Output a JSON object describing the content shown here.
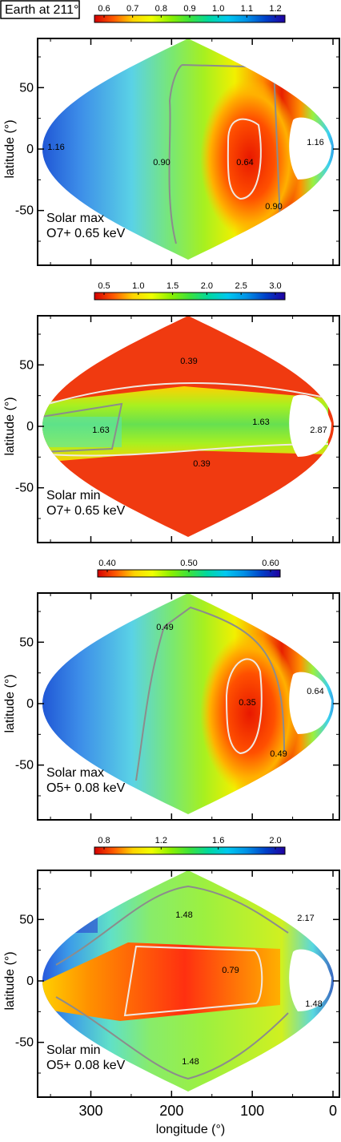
{
  "figure": {
    "earth_label": "Earth at 211°",
    "xlabel": "longitude (°)",
    "ylabel": "latitude (°)"
  },
  "colors": {
    "colormap": [
      "#d40000",
      "#ff5a00",
      "#ffd200",
      "#f0ff00",
      "#8cf000",
      "#3ce23c",
      "#00d8a0",
      "#00c8f0",
      "#0090e6",
      "#0040c8",
      "#2000a0"
    ],
    "outer_contour": "#8c8c8c",
    "inner_contour": "#f0e8e0"
  },
  "chart_data": [
    {
      "type": "heatmap",
      "projection": "sinusoidal",
      "panel_label": [
        "Solar max",
        "O7+ 0.65 keV"
      ],
      "xlim": [
        360,
        0
      ],
      "ylim": [
        -90,
        90
      ],
      "xticks": [
        300,
        200,
        100,
        0
      ],
      "yticks": [
        50,
        0,
        -50
      ],
      "colorbar": {
        "ticks": [
          "0.6",
          "0.7",
          "0.8",
          "0.9",
          "1.0",
          "1.1",
          "1.2"
        ]
      },
      "contour_labels": [
        "1.16",
        "0.90",
        "0.64",
        "1.16",
        "0.90"
      ],
      "pattern": "max",
      "grid": false
    },
    {
      "type": "heatmap",
      "projection": "sinusoidal",
      "panel_label": [
        "Solar min",
        "O7+ 0.65 keV"
      ],
      "xlim": [
        360,
        0
      ],
      "ylim": [
        -90,
        90
      ],
      "xticks": [
        300,
        200,
        100,
        0
      ],
      "yticks": [
        50,
        0,
        -50
      ],
      "colorbar": {
        "ticks": [
          "0.5",
          "1.0",
          "1.5",
          "2.0",
          "2.5",
          "3.0"
        ]
      },
      "contour_labels": [
        "0.39",
        "1.63",
        "1.63",
        "2.87",
        "0.39"
      ],
      "pattern": "min",
      "grid": false
    },
    {
      "type": "heatmap",
      "projection": "sinusoidal",
      "panel_label": [
        "Solar max",
        "O5+ 0.08 keV"
      ],
      "xlim": [
        360,
        0
      ],
      "ylim": [
        -90,
        90
      ],
      "xticks": [
        300,
        200,
        100,
        0
      ],
      "yticks": [
        50,
        0,
        -50
      ],
      "colorbar": {
        "ticks": [
          "0.40",
          "0.50",
          "0.60"
        ]
      },
      "contour_labels": [
        "0.49",
        "0.35",
        "0.64",
        "0.49"
      ],
      "pattern": "max",
      "grid": false
    },
    {
      "type": "heatmap",
      "projection": "sinusoidal",
      "panel_label": [
        "Solar min",
        "O5+ 0.08 keV"
      ],
      "xlim": [
        360,
        0
      ],
      "ylim": [
        -90,
        90
      ],
      "xticks": [
        300,
        200,
        100,
        0
      ],
      "yticks": [
        50,
        0,
        -50
      ],
      "colorbar": {
        "ticks": [
          "0.8",
          "1.2",
          "1.6",
          "2.0"
        ]
      },
      "contour_labels": [
        "1.48",
        "2.17",
        "0.79",
        "1.48",
        "1.48"
      ],
      "pattern": "min5",
      "grid": false
    }
  ]
}
